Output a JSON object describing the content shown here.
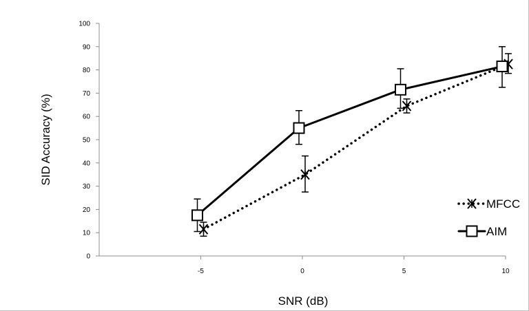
{
  "chart_data": {
    "type": "line",
    "title": "",
    "xlabel": "SNR (dB)",
    "ylabel": "SID Accuracy (%)",
    "xlim": [
      -10,
      10
    ],
    "ylim": [
      0,
      100
    ],
    "x_ticks": [
      -5,
      0,
      5,
      10
    ],
    "y_ticks": [
      0,
      10,
      20,
      30,
      40,
      50,
      60,
      70,
      80,
      90,
      100
    ],
    "grid": false,
    "legend_position": "bottom-right",
    "series": [
      {
        "name": "MFCC",
        "style": "dotted",
        "marker": "x-cross",
        "color": "#000000",
        "points": [
          {
            "x": -5,
            "y": 11.5,
            "err_low": 8.5,
            "err_high": 14.5
          },
          {
            "x": 0,
            "y": 35,
            "err_low": 27.5,
            "err_high": 43
          },
          {
            "x": 5,
            "y": 64.5,
            "err_low": 61.5,
            "err_high": 67.5
          },
          {
            "x": 10,
            "y": 82.5,
            "err_low": 78.5,
            "err_high": 87
          }
        ]
      },
      {
        "name": "AIM",
        "style": "solid",
        "marker": "open-square",
        "color": "#000000",
        "points": [
          {
            "x": -5,
            "y": 17.5,
            "err_low": 10.5,
            "err_high": 24.5
          },
          {
            "x": 0,
            "y": 55,
            "err_low": 48,
            "err_high": 62.5
          },
          {
            "x": 5,
            "y": 71.5,
            "err_low": 63.5,
            "err_high": 80.5
          },
          {
            "x": 10,
            "y": 81.5,
            "err_low": 72.5,
            "err_high": 90
          }
        ]
      }
    ]
  }
}
